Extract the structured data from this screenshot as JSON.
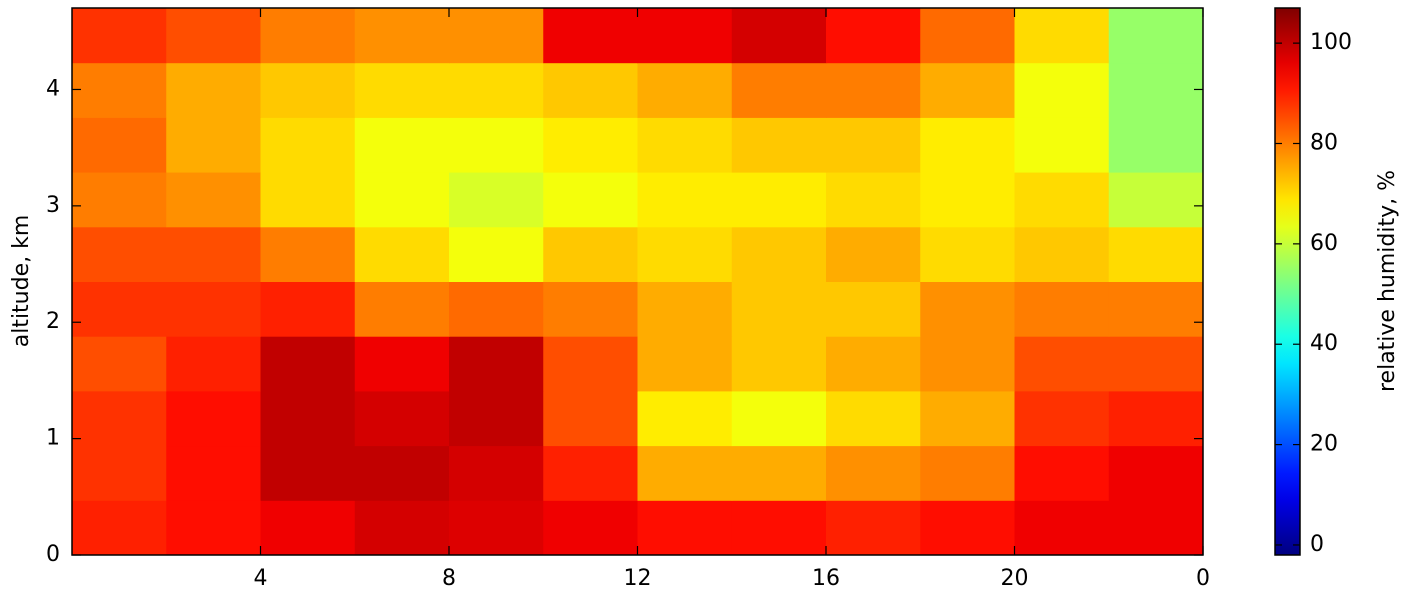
{
  "chart_data": {
    "type": "heatmap",
    "colormap": "jet",
    "xlabel": null,
    "ylabel": "altitude, km",
    "colorbar_label": "relative humidity, %",
    "xlim": [
      0,
      24
    ],
    "ylim": [
      0,
      4.7
    ],
    "xticks": [
      4,
      8,
      12,
      16,
      20,
      {
        "value": 24,
        "label": "0"
      }
    ],
    "yticks": [
      0,
      1,
      2,
      3,
      4
    ],
    "clim": [
      -2,
      107
    ],
    "cticks": [
      0,
      20,
      40,
      60,
      80,
      100
    ],
    "z": [
      [
        90,
        92,
        95,
        98,
        97,
        95,
        92,
        92,
        90,
        92,
        95,
        95
      ],
      [
        88,
        92,
        100,
        100,
        98,
        90,
        75,
        75,
        78,
        80,
        92,
        95
      ],
      [
        88,
        92,
        100,
        98,
        100,
        85,
        68,
        65,
        70,
        75,
        88,
        90
      ],
      [
        85,
        90,
        100,
        95,
        100,
        85,
        75,
        72,
        75,
        78,
        85,
        85
      ],
      [
        88,
        88,
        90,
        80,
        82,
        80,
        75,
        72,
        72,
        78,
        80,
        80
      ],
      [
        85,
        85,
        80,
        70,
        65,
        72,
        70,
        72,
        75,
        70,
        72,
        70
      ],
      [
        80,
        78,
        70,
        65,
        62,
        65,
        68,
        68,
        70,
        68,
        70,
        60
      ],
      [
        82,
        75,
        70,
        65,
        65,
        68,
        70,
        72,
        72,
        68,
        65,
        55
      ],
      [
        80,
        75,
        72,
        70,
        70,
        72,
        75,
        80,
        80,
        75,
        65,
        55
      ],
      [
        88,
        85,
        80,
        78,
        78,
        95,
        95,
        98,
        92,
        82,
        70,
        55
      ]
    ]
  }
}
